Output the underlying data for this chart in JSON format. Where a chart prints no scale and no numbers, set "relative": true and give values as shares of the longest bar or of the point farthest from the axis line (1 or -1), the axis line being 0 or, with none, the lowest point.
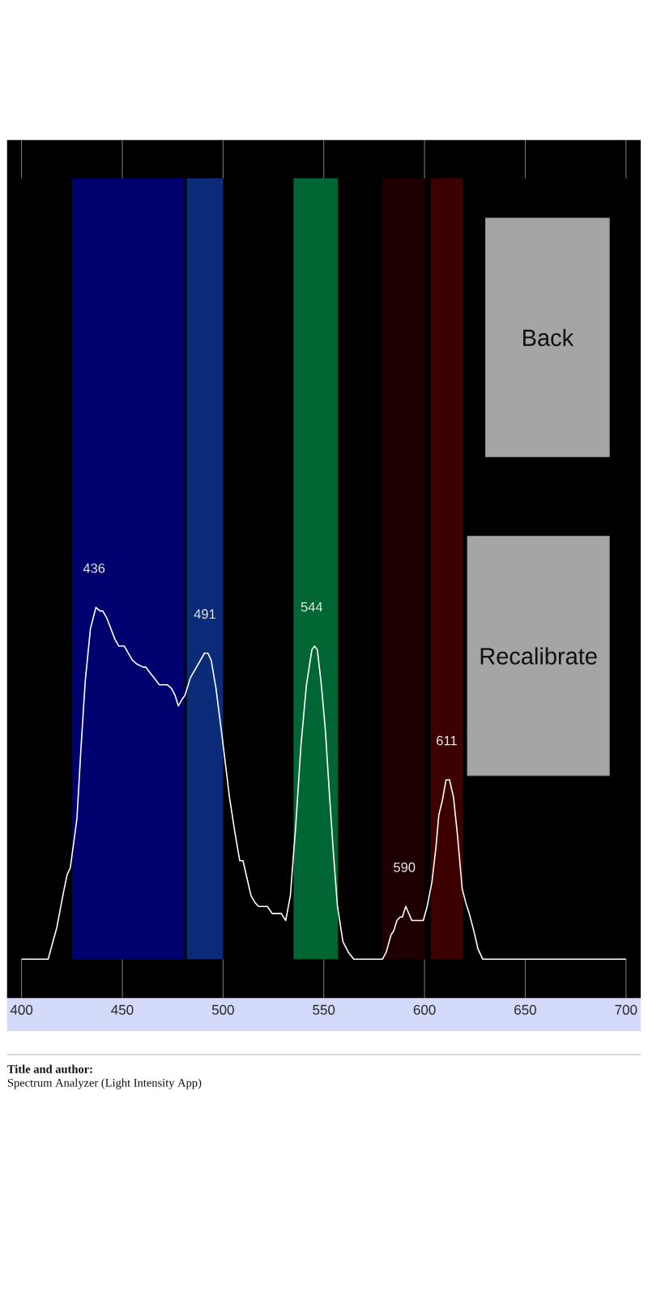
{
  "chart_data": {
    "type": "line",
    "relative": true,
    "color": "#ffffff",
    "x": [
      400,
      413.2,
      417.5,
      420.8,
      422.6,
      424.2,
      427.5,
      429.5,
      431.6,
      434.2,
      436.9,
      438.9,
      440.3,
      442.3,
      444.3,
      446.3,
      448.3,
      451.0,
      453.0,
      455.0,
      457.0,
      460.4,
      461.7,
      463.0,
      465.7,
      468.4,
      472.4,
      474.4,
      476.2,
      477.8,
      479.8,
      481.1,
      483.8,
      487.8,
      490.8,
      492.5,
      494.1,
      496.5,
      499.6,
      503.2,
      505.9,
      508.3,
      509.9,
      511.9,
      513.9,
      516.0,
      517.7,
      522.0,
      524.4,
      528.9,
      531.1,
      533.4,
      536.1,
      538.7,
      541.4,
      544.1,
      545.4,
      546.8,
      548.8,
      550.8,
      552.8,
      554.8,
      556.8,
      559.5,
      562.2,
      564.9,
      579.1,
      581.0,
      583.4,
      584.7,
      586.3,
      587.9,
      589.0,
      590.7,
      593.7,
      599.4,
      601.3,
      603.7,
      605.7,
      607.1,
      608.8,
      610.7,
      612.4,
      614.4,
      616.4,
      618.7,
      620.5,
      622.2,
      624.5,
      626.5,
      628.9,
      700
    ],
    "values": [
      0,
      0,
      0.09,
      0.19,
      0.24,
      0.26,
      0.4,
      0.6,
      0.79,
      0.94,
      1,
      0.99,
      0.99,
      0.97,
      0.94,
      0.91,
      0.89,
      0.89,
      0.87,
      0.85,
      0.84,
      0.83,
      0.83,
      0.82,
      0.8,
      0.78,
      0.78,
      0.77,
      0.75,
      0.72,
      0.74,
      0.75,
      0.8,
      0.84,
      0.87,
      0.87,
      0.85,
      0.77,
      0.63,
      0.46,
      0.36,
      0.28,
      0.28,
      0.23,
      0.18,
      0.16,
      0.15,
      0.15,
      0.13,
      0.13,
      0.11,
      0.18,
      0.38,
      0.61,
      0.78,
      0.88,
      0.89,
      0.88,
      0.78,
      0.65,
      0.47,
      0.3,
      0.15,
      0.05,
      0.02,
      0,
      0,
      0.02,
      0.07,
      0.08,
      0.11,
      0.12,
      0.12,
      0.15,
      0.11,
      0.11,
      0.15,
      0.22,
      0.32,
      0.41,
      0.45,
      0.51,
      0.51,
      0.46,
      0.35,
      0.2,
      0.16,
      0.13,
      0.08,
      0.03,
      0,
      0
    ],
    "xlim": [
      392.8,
      707.3
    ],
    "xticks": [
      400,
      450,
      500,
      550,
      600,
      650,
      700
    ],
    "grid": "x",
    "bands": [
      {
        "axis": "x",
        "from": 425,
        "to": 481,
        "color": "#00006e"
      },
      {
        "axis": "x",
        "from": 482,
        "to": 500,
        "color": "#0b2a78"
      },
      {
        "axis": "x",
        "from": 535,
        "to": 557,
        "color": "#006634"
      },
      {
        "axis": "x",
        "from": 579,
        "to": 600,
        "color": "#1e0000"
      },
      {
        "axis": "x",
        "from": 603,
        "to": 619,
        "color": "#3c0000"
      }
    ],
    "annotations": [
      {
        "text": "436",
        "x": 436,
        "y": 1
      },
      {
        "text": "491",
        "x": 491,
        "y": 0.87
      },
      {
        "text": "544",
        "x": 544,
        "y": 0.89
      },
      {
        "text": "590",
        "x": 590,
        "y": 0.15
      },
      {
        "text": "611",
        "x": 611,
        "y": 0.51
      },
      "Back",
      "Recalibrate",
      "Title and author:",
      "Spectrum Analyzer (Light Intensity App)"
    ]
  }
}
